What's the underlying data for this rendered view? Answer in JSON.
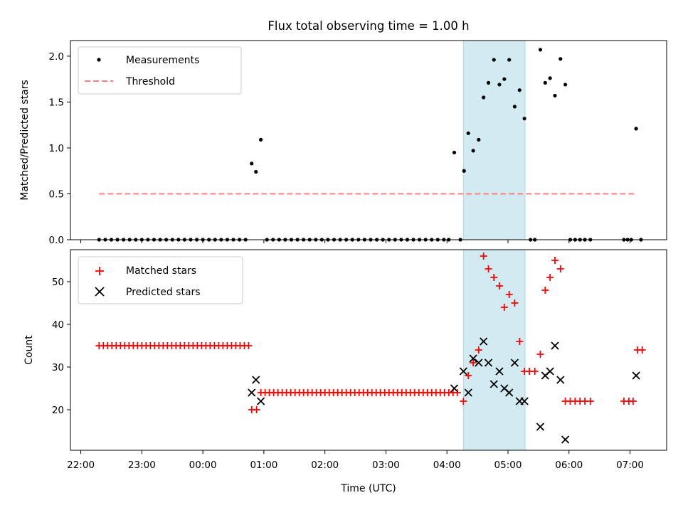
{
  "chart_data": [
    {
      "type": "scatter",
      "title": "Flux total observing time = 1.00 h",
      "xlabel": "",
      "ylabel": "Matched/Predicted stars",
      "ylim": [
        0,
        2.17
      ],
      "yticks": [
        0.0,
        0.5,
        1.0,
        1.5,
        2.0
      ],
      "ytick_labels": [
        "0.0",
        "0.5",
        "1.0",
        "1.5",
        "2.0"
      ],
      "x_unit": "hours since 22:00 UTC",
      "xlim": [
        -0.17,
        9.6
      ],
      "highlight_span": {
        "x0": 6.27,
        "x1": 7.28,
        "color": "#add8e6"
      },
      "legend_position": "upper-left",
      "series": [
        {
          "name": "Measurements",
          "marker": "dot",
          "color": "#000000",
          "points": [
            [
              0.3,
              0
            ],
            [
              0.4,
              0
            ],
            [
              0.5,
              0
            ],
            [
              0.6,
              0
            ],
            [
              0.7,
              0
            ],
            [
              0.8,
              0
            ],
            [
              0.9,
              0
            ],
            [
              1.0,
              0
            ],
            [
              1.1,
              0
            ],
            [
              1.2,
              0
            ],
            [
              1.3,
              0
            ],
            [
              1.4,
              0
            ],
            [
              1.5,
              0
            ],
            [
              1.6,
              0
            ],
            [
              1.7,
              0
            ],
            [
              1.8,
              0
            ],
            [
              1.9,
              0
            ],
            [
              2.0,
              0
            ],
            [
              2.1,
              0
            ],
            [
              2.2,
              0
            ],
            [
              2.3,
              0
            ],
            [
              2.4,
              0
            ],
            [
              2.5,
              0
            ],
            [
              2.6,
              0
            ],
            [
              2.7,
              0
            ],
            [
              2.8,
              0.83
            ],
            [
              2.87,
              0.74
            ],
            [
              2.95,
              1.09
            ],
            [
              3.05,
              0
            ],
            [
              3.15,
              0
            ],
            [
              3.25,
              0
            ],
            [
              3.35,
              0
            ],
            [
              3.45,
              0
            ],
            [
              3.55,
              0
            ],
            [
              3.65,
              0
            ],
            [
              3.75,
              0
            ],
            [
              3.85,
              0
            ],
            [
              3.95,
              0
            ],
            [
              4.05,
              0
            ],
            [
              4.15,
              0
            ],
            [
              4.25,
              0
            ],
            [
              4.35,
              0
            ],
            [
              4.45,
              0
            ],
            [
              4.55,
              0
            ],
            [
              4.65,
              0
            ],
            [
              4.75,
              0
            ],
            [
              4.85,
              0
            ],
            [
              4.95,
              0
            ],
            [
              5.05,
              0
            ],
            [
              5.15,
              0
            ],
            [
              5.25,
              0
            ],
            [
              5.35,
              0
            ],
            [
              5.45,
              0
            ],
            [
              5.55,
              0
            ],
            [
              5.65,
              0
            ],
            [
              5.75,
              0
            ],
            [
              5.85,
              0
            ],
            [
              5.95,
              0
            ],
            [
              6.03,
              0
            ],
            [
              6.12,
              0.95
            ],
            [
              6.22,
              0
            ],
            [
              6.28,
              0.75
            ],
            [
              6.35,
              1.16
            ],
            [
              6.43,
              0.97
            ],
            [
              6.52,
              1.09
            ],
            [
              6.6,
              1.55
            ],
            [
              6.68,
              1.71
            ],
            [
              6.77,
              1.96
            ],
            [
              6.86,
              1.69
            ],
            [
              6.94,
              1.75
            ],
            [
              7.02,
              1.96
            ],
            [
              7.11,
              1.45
            ],
            [
              7.19,
              1.63
            ],
            [
              7.27,
              1.32
            ],
            [
              7.37,
              0
            ],
            [
              7.44,
              0
            ],
            [
              7.53,
              2.07
            ],
            [
              7.61,
              1.71
            ],
            [
              7.69,
              1.76
            ],
            [
              7.77,
              1.57
            ],
            [
              7.86,
              1.97
            ],
            [
              7.94,
              1.69
            ],
            [
              8.02,
              0
            ],
            [
              8.1,
              0
            ],
            [
              8.18,
              0
            ],
            [
              8.26,
              0
            ],
            [
              8.35,
              0
            ],
            [
              8.9,
              0
            ],
            [
              8.96,
              0
            ],
            [
              9.02,
              0
            ],
            [
              9.1,
              1.21
            ],
            [
              9.18,
              0
            ]
          ]
        },
        {
          "name": "Threshold",
          "kind": "dashed-line",
          "color": "#ff7f7f",
          "x": [
            0.3,
            9.1
          ],
          "values": [
            0.5,
            0.5
          ]
        }
      ]
    },
    {
      "type": "scatter",
      "title": "",
      "xlabel": "Time (UTC)",
      "ylabel": "Count",
      "ylim": [
        10.5,
        57.5
      ],
      "yticks": [
        20,
        30,
        40,
        50
      ],
      "ytick_labels": [
        "20",
        "30",
        "40",
        "50"
      ],
      "x_unit": "hours since 22:00 UTC",
      "xlim": [
        -0.17,
        9.6
      ],
      "xticks": [
        0,
        1,
        2,
        3,
        4,
        5,
        6,
        7,
        8,
        9
      ],
      "xtick_labels": [
        "22:00",
        "23:00",
        "00:00",
        "01:00",
        "02:00",
        "03:00",
        "04:00",
        "05:00",
        "06:00",
        "07:00"
      ],
      "highlight_span": {
        "x0": 6.27,
        "x1": 7.28,
        "color": "#add8e6"
      },
      "legend_position": "upper-left",
      "series": [
        {
          "name": "Matched stars",
          "marker": "plus",
          "color": "#ff0000",
          "points": [
            [
              0.3,
              35
            ],
            [
              0.37,
              35
            ],
            [
              0.44,
              35
            ],
            [
              0.51,
              35
            ],
            [
              0.58,
              35
            ],
            [
              0.65,
              35
            ],
            [
              0.72,
              35
            ],
            [
              0.79,
              35
            ],
            [
              0.86,
              35
            ],
            [
              0.93,
              35
            ],
            [
              1.0,
              35
            ],
            [
              1.07,
              35
            ],
            [
              1.14,
              35
            ],
            [
              1.21,
              35
            ],
            [
              1.28,
              35
            ],
            [
              1.35,
              35
            ],
            [
              1.42,
              35
            ],
            [
              1.49,
              35
            ],
            [
              1.56,
              35
            ],
            [
              1.63,
              35
            ],
            [
              1.7,
              35
            ],
            [
              1.77,
              35
            ],
            [
              1.84,
              35
            ],
            [
              1.91,
              35
            ],
            [
              1.98,
              35
            ],
            [
              2.05,
              35
            ],
            [
              2.12,
              35
            ],
            [
              2.19,
              35
            ],
            [
              2.26,
              35
            ],
            [
              2.33,
              35
            ],
            [
              2.4,
              35
            ],
            [
              2.47,
              35
            ],
            [
              2.54,
              35
            ],
            [
              2.61,
              35
            ],
            [
              2.68,
              35
            ],
            [
              2.75,
              35
            ],
            [
              2.8,
              20
            ],
            [
              2.88,
              20
            ],
            [
              2.95,
              24
            ],
            [
              3.02,
              24
            ],
            [
              3.09,
              24
            ],
            [
              3.16,
              24
            ],
            [
              3.23,
              24
            ],
            [
              3.3,
              24
            ],
            [
              3.37,
              24
            ],
            [
              3.44,
              24
            ],
            [
              3.51,
              24
            ],
            [
              3.58,
              24
            ],
            [
              3.65,
              24
            ],
            [
              3.72,
              24
            ],
            [
              3.79,
              24
            ],
            [
              3.86,
              24
            ],
            [
              3.93,
              24
            ],
            [
              4.0,
              24
            ],
            [
              4.07,
              24
            ],
            [
              4.14,
              24
            ],
            [
              4.21,
              24
            ],
            [
              4.28,
              24
            ],
            [
              4.35,
              24
            ],
            [
              4.42,
              24
            ],
            [
              4.49,
              24
            ],
            [
              4.56,
              24
            ],
            [
              4.63,
              24
            ],
            [
              4.7,
              24
            ],
            [
              4.77,
              24
            ],
            [
              4.84,
              24
            ],
            [
              4.91,
              24
            ],
            [
              4.98,
              24
            ],
            [
              5.05,
              24
            ],
            [
              5.12,
              24
            ],
            [
              5.19,
              24
            ],
            [
              5.26,
              24
            ],
            [
              5.33,
              24
            ],
            [
              5.4,
              24
            ],
            [
              5.47,
              24
            ],
            [
              5.54,
              24
            ],
            [
              5.61,
              24
            ],
            [
              5.68,
              24
            ],
            [
              5.75,
              24
            ],
            [
              5.82,
              24
            ],
            [
              5.89,
              24
            ],
            [
              5.96,
              24
            ],
            [
              6.03,
              24
            ],
            [
              6.1,
              24
            ],
            [
              6.17,
              24
            ],
            [
              6.27,
              22
            ],
            [
              6.35,
              28
            ],
            [
              6.43,
              31
            ],
            [
              6.52,
              34
            ],
            [
              6.6,
              56
            ],
            [
              6.68,
              53
            ],
            [
              6.77,
              51
            ],
            [
              6.86,
              49
            ],
            [
              6.94,
              44
            ],
            [
              7.02,
              47
            ],
            [
              7.11,
              45
            ],
            [
              7.19,
              36
            ],
            [
              7.27,
              29
            ],
            [
              7.35,
              29
            ],
            [
              7.44,
              29
            ],
            [
              7.53,
              33
            ],
            [
              7.61,
              48
            ],
            [
              7.69,
              51
            ],
            [
              7.77,
              55
            ],
            [
              7.86,
              53
            ],
            [
              7.94,
              22
            ],
            [
              8.02,
              22
            ],
            [
              8.1,
              22
            ],
            [
              8.18,
              22
            ],
            [
              8.26,
              22
            ],
            [
              8.35,
              22
            ],
            [
              8.9,
              22
            ],
            [
              8.98,
              22
            ],
            [
              9.05,
              22
            ],
            [
              9.12,
              34
            ],
            [
              9.2,
              34
            ]
          ]
        },
        {
          "name": "Predicted stars",
          "marker": "x",
          "color": "#000000",
          "points": [
            [
              2.8,
              24
            ],
            [
              2.87,
              27
            ],
            [
              2.95,
              22
            ],
            [
              6.12,
              25
            ],
            [
              6.27,
              29
            ],
            [
              6.35,
              24
            ],
            [
              6.43,
              32
            ],
            [
              6.52,
              31
            ],
            [
              6.6,
              36
            ],
            [
              6.68,
              31
            ],
            [
              6.77,
              26
            ],
            [
              6.86,
              29
            ],
            [
              6.94,
              25
            ],
            [
              7.02,
              24
            ],
            [
              7.11,
              31
            ],
            [
              7.19,
              22
            ],
            [
              7.27,
              22
            ],
            [
              7.53,
              16
            ],
            [
              7.61,
              28
            ],
            [
              7.69,
              29
            ],
            [
              7.77,
              35
            ],
            [
              7.86,
              27
            ],
            [
              7.94,
              13
            ],
            [
              9.1,
              28
            ]
          ]
        }
      ]
    }
  ]
}
